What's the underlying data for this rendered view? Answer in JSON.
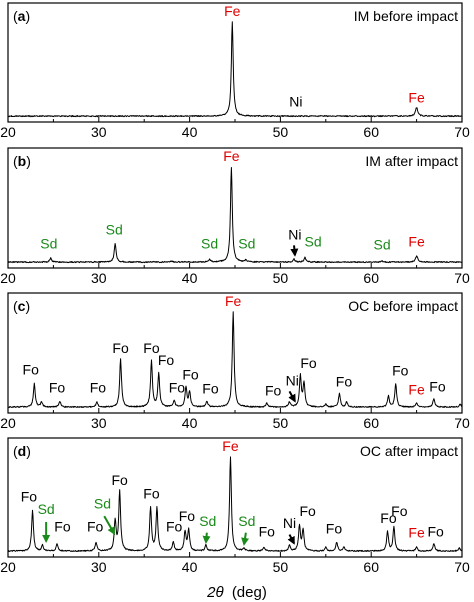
{
  "chart_data": {
    "type": "line",
    "xlabel_var": "2θ",
    "xlabel_unit": "(deg)",
    "xlim": [
      20,
      70
    ],
    "xticks": [
      "20",
      "30",
      "40",
      "50",
      "60",
      "70"
    ],
    "colors": {
      "trace": "#000000",
      "fe": "#e00000",
      "sd": "#1a8a1a",
      "text": "#000000"
    },
    "panels": [
      {
        "letter": "a",
        "title": "IM before impact",
        "baseline": 0.03,
        "peaks": [
          {
            "x": 44.7,
            "y": 1.0,
            "w": 0.12
          },
          {
            "x": 52.0,
            "y": 0.03,
            "w": 0.15
          },
          {
            "x": 65.0,
            "y": 0.12,
            "w": 0.15
          }
        ],
        "labels": [
          {
            "text": "Fe",
            "x": 44.7,
            "y": 1.06,
            "color": "fe"
          },
          {
            "text": "Ni",
            "x": 51.7,
            "y": 0.13,
            "color": "text"
          },
          {
            "text": "Fe",
            "x": 65.0,
            "y": 0.17,
            "color": "fe"
          }
        ],
        "arrows": []
      },
      {
        "letter": "b",
        "title": "IM after impact",
        "baseline": 0.03,
        "peaks": [
          {
            "x": 24.7,
            "y": 0.07,
            "w": 0.12
          },
          {
            "x": 31.8,
            "y": 0.22,
            "w": 0.12
          },
          {
            "x": 38.0,
            "y": 0.04,
            "w": 0.12
          },
          {
            "x": 42.2,
            "y": 0.06,
            "w": 0.12
          },
          {
            "x": 44.6,
            "y": 1.0,
            "w": 0.12
          },
          {
            "x": 46.2,
            "y": 0.05,
            "w": 0.12
          },
          {
            "x": 51.5,
            "y": 0.06,
            "w": 0.12
          },
          {
            "x": 52.7,
            "y": 0.08,
            "w": 0.12
          },
          {
            "x": 61.2,
            "y": 0.04,
            "w": 0.12
          },
          {
            "x": 65.0,
            "y": 0.09,
            "w": 0.15
          }
        ],
        "labels": [
          {
            "text": "Sd",
            "x": 24.5,
            "y": 0.17,
            "color": "sd"
          },
          {
            "text": "Sd",
            "x": 31.7,
            "y": 0.31,
            "color": "sd"
          },
          {
            "text": "Sd",
            "x": 42.2,
            "y": 0.17,
            "color": "sd"
          },
          {
            "text": "Fe",
            "x": 44.6,
            "y": 1.06,
            "color": "fe"
          },
          {
            "text": "Sd",
            "x": 46.3,
            "y": 0.17,
            "color": "sd"
          },
          {
            "text": "Ni",
            "x": 51.6,
            "y": 0.26,
            "color": "text"
          },
          {
            "text": "Sd",
            "x": 53.6,
            "y": 0.19,
            "color": "sd"
          },
          {
            "text": "Sd",
            "x": 61.2,
            "y": 0.16,
            "color": "sd"
          },
          {
            "text": "Fe",
            "x": 65.0,
            "y": 0.19,
            "color": "fe"
          }
        ],
        "arrows": [
          {
            "x1": 51.5,
            "y1": 0.2,
            "x2": 51.6,
            "y2": 0.1,
            "color": "text"
          }
        ]
      },
      {
        "letter": "c",
        "title": "OC before impact",
        "baseline": 0.03,
        "peaks": [
          {
            "x": 22.9,
            "y": 0.27,
            "w": 0.12
          },
          {
            "x": 23.7,
            "y": 0.08,
            "w": 0.12
          },
          {
            "x": 25.7,
            "y": 0.09,
            "w": 0.12
          },
          {
            "x": 29.8,
            "y": 0.08,
            "w": 0.12
          },
          {
            "x": 32.4,
            "y": 0.52,
            "w": 0.12
          },
          {
            "x": 35.8,
            "y": 0.5,
            "w": 0.12
          },
          {
            "x": 36.6,
            "y": 0.37,
            "w": 0.12
          },
          {
            "x": 38.3,
            "y": 0.1,
            "w": 0.12
          },
          {
            "x": 39.6,
            "y": 0.23,
            "w": 0.12
          },
          {
            "x": 40.0,
            "y": 0.18,
            "w": 0.12
          },
          {
            "x": 41.9,
            "y": 0.09,
            "w": 0.12
          },
          {
            "x": 44.8,
            "y": 1.0,
            "w": 0.12
          },
          {
            "x": 48.5,
            "y": 0.07,
            "w": 0.12
          },
          {
            "x": 51.0,
            "y": 0.08,
            "w": 0.12
          },
          {
            "x": 52.2,
            "y": 0.35,
            "w": 0.12
          },
          {
            "x": 52.6,
            "y": 0.27,
            "w": 0.12
          },
          {
            "x": 55.0,
            "y": 0.06,
            "w": 0.12
          },
          {
            "x": 56.5,
            "y": 0.17,
            "w": 0.12
          },
          {
            "x": 57.3,
            "y": 0.08,
            "w": 0.12
          },
          {
            "x": 61.9,
            "y": 0.14,
            "w": 0.12
          },
          {
            "x": 62.7,
            "y": 0.27,
            "w": 0.12
          },
          {
            "x": 65.0,
            "y": 0.07,
            "w": 0.12
          },
          {
            "x": 66.9,
            "y": 0.12,
            "w": 0.12
          },
          {
            "x": 69.8,
            "y": 0.06,
            "w": 0.12
          }
        ],
        "labels": [
          {
            "text": "Fo",
            "x": 22.5,
            "y": 0.36,
            "color": "text"
          },
          {
            "text": "Fo",
            "x": 25.4,
            "y": 0.18,
            "color": "text"
          },
          {
            "text": "Fo",
            "x": 29.9,
            "y": 0.18,
            "color": "text"
          },
          {
            "text": "Fo",
            "x": 32.4,
            "y": 0.58,
            "color": "text"
          },
          {
            "text": "Fo",
            "x": 35.8,
            "y": 0.58,
            "color": "text"
          },
          {
            "text": "Fo",
            "x": 37.4,
            "y": 0.46,
            "color": "text"
          },
          {
            "text": "Fo",
            "x": 38.6,
            "y": 0.18,
            "color": "text"
          },
          {
            "text": "Fo",
            "x": 40.1,
            "y": 0.31,
            "color": "text"
          },
          {
            "text": "Fo",
            "x": 42.3,
            "y": 0.17,
            "color": "text"
          },
          {
            "text": "Fe",
            "x": 44.8,
            "y": 1.06,
            "color": "fe"
          },
          {
            "text": "Fo",
            "x": 49.2,
            "y": 0.15,
            "color": "text"
          },
          {
            "text": "Ni",
            "x": 51.3,
            "y": 0.25,
            "color": "text"
          },
          {
            "text": "Fo",
            "x": 53.1,
            "y": 0.43,
            "color": "text"
          },
          {
            "text": "Fo",
            "x": 57.0,
            "y": 0.24,
            "color": "text"
          },
          {
            "text": "Fo",
            "x": 63.2,
            "y": 0.35,
            "color": "text"
          },
          {
            "text": "Fe",
            "x": 65.0,
            "y": 0.16,
            "color": "fe"
          },
          {
            "text": "Fo",
            "x": 67.3,
            "y": 0.19,
            "color": "text"
          }
        ],
        "arrows": [
          {
            "x1": 51.0,
            "y1": 0.19,
            "x2": 51.6,
            "y2": 0.09,
            "color": "text"
          }
        ]
      },
      {
        "letter": "d",
        "title": "OC after impact",
        "baseline": 0.03,
        "peaks": [
          {
            "x": 22.7,
            "y": 0.45,
            "w": 0.12
          },
          {
            "x": 23.8,
            "y": 0.09,
            "w": 0.12
          },
          {
            "x": 25.4,
            "y": 0.1,
            "w": 0.12
          },
          {
            "x": 29.7,
            "y": 0.12,
            "w": 0.12
          },
          {
            "x": 31.8,
            "y": 0.34,
            "w": 0.12
          },
          {
            "x": 32.3,
            "y": 0.65,
            "w": 0.12
          },
          {
            "x": 35.7,
            "y": 0.48,
            "w": 0.12
          },
          {
            "x": 36.4,
            "y": 0.48,
            "w": 0.12
          },
          {
            "x": 38.2,
            "y": 0.12,
            "w": 0.12
          },
          {
            "x": 39.5,
            "y": 0.23,
            "w": 0.12
          },
          {
            "x": 39.9,
            "y": 0.25,
            "w": 0.12
          },
          {
            "x": 41.8,
            "y": 0.09,
            "w": 0.12
          },
          {
            "x": 44.5,
            "y": 1.0,
            "w": 0.12
          },
          {
            "x": 46.0,
            "y": 0.06,
            "w": 0.12
          },
          {
            "x": 48.2,
            "y": 0.07,
            "w": 0.12
          },
          {
            "x": 51.0,
            "y": 0.09,
            "w": 0.12
          },
          {
            "x": 52.1,
            "y": 0.29,
            "w": 0.12
          },
          {
            "x": 52.5,
            "y": 0.25,
            "w": 0.12
          },
          {
            "x": 55.0,
            "y": 0.07,
            "w": 0.12
          },
          {
            "x": 56.2,
            "y": 0.12,
            "w": 0.12
          },
          {
            "x": 57.0,
            "y": 0.07,
            "w": 0.12
          },
          {
            "x": 61.8,
            "y": 0.23,
            "w": 0.12
          },
          {
            "x": 62.5,
            "y": 0.28,
            "w": 0.12
          },
          {
            "x": 65.0,
            "y": 0.07,
            "w": 0.12
          },
          {
            "x": 66.9,
            "y": 0.11,
            "w": 0.12
          },
          {
            "x": 69.7,
            "y": 0.06,
            "w": 0.12
          }
        ],
        "labels": [
          {
            "text": "Fo",
            "x": 22.3,
            "y": 0.54,
            "color": "text"
          },
          {
            "text": "Sd",
            "x": 24.2,
            "y": 0.41,
            "color": "sd"
          },
          {
            "text": "Fo",
            "x": 26.0,
            "y": 0.23,
            "color": "text"
          },
          {
            "text": "Fo",
            "x": 29.6,
            "y": 0.23,
            "color": "text"
          },
          {
            "text": "Sd",
            "x": 30.4,
            "y": 0.47,
            "color": "sd"
          },
          {
            "text": "Fo",
            "x": 32.3,
            "y": 0.71,
            "color": "text"
          },
          {
            "text": "Fo",
            "x": 35.8,
            "y": 0.57,
            "color": "text"
          },
          {
            "text": "Fo",
            "x": 38.3,
            "y": 0.23,
            "color": "text"
          },
          {
            "text": "Fo",
            "x": 39.7,
            "y": 0.34,
            "color": "text"
          },
          {
            "text": "Sd",
            "x": 42.0,
            "y": 0.29,
            "color": "sd"
          },
          {
            "text": "Fe",
            "x": 44.5,
            "y": 1.06,
            "color": "fe"
          },
          {
            "text": "Sd",
            "x": 46.3,
            "y": 0.29,
            "color": "sd"
          },
          {
            "text": "Fo",
            "x": 48.5,
            "y": 0.18,
            "color": "text"
          },
          {
            "text": "Ni",
            "x": 51.0,
            "y": 0.27,
            "color": "text"
          },
          {
            "text": "Fo",
            "x": 53.0,
            "y": 0.39,
            "color": "text"
          },
          {
            "text": "Fo",
            "x": 55.9,
            "y": 0.21,
            "color": "text"
          },
          {
            "text": "Fo",
            "x": 61.9,
            "y": 0.32,
            "color": "text"
          },
          {
            "text": "Fo",
            "x": 63.1,
            "y": 0.39,
            "color": "text"
          },
          {
            "text": "Fe",
            "x": 65.0,
            "y": 0.17,
            "color": "fe"
          },
          {
            "text": "Fo",
            "x": 67.1,
            "y": 0.18,
            "color": "text"
          }
        ],
        "arrows": [
          {
            "x1": 24.2,
            "y1": 0.33,
            "x2": 24.2,
            "y2": 0.13,
            "color": "sd"
          },
          {
            "x1": 30.6,
            "y1": 0.39,
            "x2": 31.7,
            "y2": 0.21,
            "color": "sd"
          },
          {
            "x1": 41.9,
            "y1": 0.22,
            "x2": 41.8,
            "y2": 0.12,
            "color": "sd"
          },
          {
            "x1": 46.2,
            "y1": 0.22,
            "x2": 46.0,
            "y2": 0.1,
            "color": "sd"
          },
          {
            "x1": 51.0,
            "y1": 0.2,
            "x2": 51.5,
            "y2": 0.11,
            "color": "text"
          }
        ]
      }
    ]
  }
}
